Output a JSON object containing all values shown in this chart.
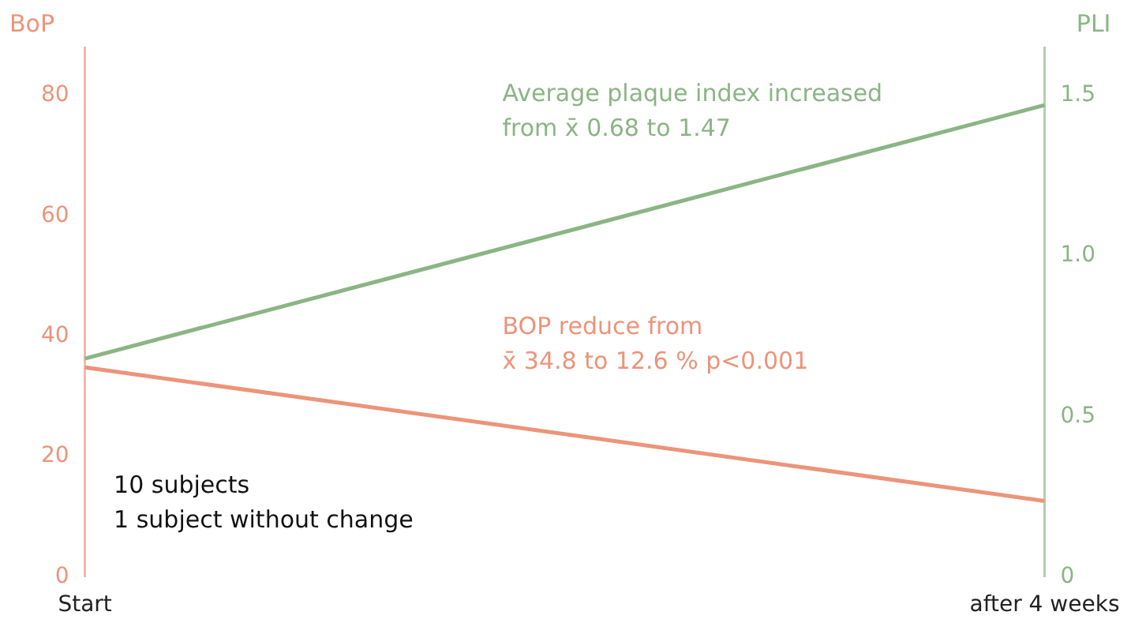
{
  "chart_data": {
    "type": "line",
    "ylabel": "BoP",
    "y2label": "PLI",
    "categories": [
      "Start",
      "after 4 weeks"
    ],
    "series": [
      {
        "color": "#ec9479",
        "values": [
          34.8,
          12.6
        ]
      },
      {
        "color": "#8ab584",
        "values": [
          0.68,
          1.47
        ],
        "axis": "y2"
      }
    ],
    "ylim": [
      0,
      88
    ],
    "yticks": [
      0,
      20,
      40,
      60,
      80
    ],
    "y2lim": [
      0,
      1.65
    ],
    "y2ticks": [
      0,
      0.5,
      {
        "value": 1,
        "label": "1.0"
      },
      1.5
    ],
    "grid": false,
    "legend": false,
    "marker": "none",
    "line_style": "solid",
    "annotations": [
      "Average plaque index increased\nfrom x̄ 0.68 to 1.47",
      "BOP reduce from\nx̄ 34.8 to 12.6 % p<0.001",
      "10 subjects\n1 subject without change"
    ]
  }
}
